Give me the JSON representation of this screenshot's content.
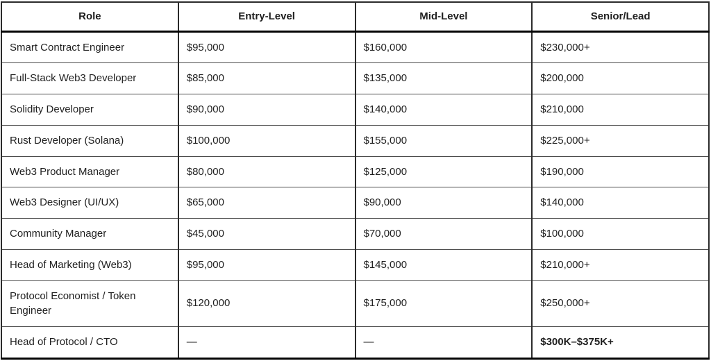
{
  "table": {
    "colors": {
      "text": "#1f1f1f",
      "outer_border": "#2b2b2b",
      "heavy_rule": "#050505",
      "row_rule": "#4a4a4a",
      "background": "#ffffff"
    },
    "columns": [
      {
        "label": "Role"
      },
      {
        "label": "Entry-Level"
      },
      {
        "label": "Mid-Level"
      },
      {
        "label": "Senior/Lead"
      }
    ],
    "rows": [
      {
        "role": "Smart Contract Engineer",
        "entry": "$95,000",
        "mid": "$160,000",
        "senior": "$230,000+"
      },
      {
        "role": "Full-Stack Web3 Developer",
        "entry": "$85,000",
        "mid": "$135,000",
        "senior": "$200,000"
      },
      {
        "role": "Solidity Developer",
        "entry": "$90,000",
        "mid": "$140,000",
        "senior": "$210,000"
      },
      {
        "role": "Rust Developer (Solana)",
        "entry": "$100,000",
        "mid": "$155,000",
        "senior": "$225,000+"
      },
      {
        "role": "Web3 Product Manager",
        "entry": "$80,000",
        "mid": "$125,000",
        "senior": "$190,000"
      },
      {
        "role": "Web3 Designer (UI/UX)",
        "entry": "$65,000",
        "mid": "$90,000",
        "senior": "$140,000"
      },
      {
        "role": "Community Manager",
        "entry": "$45,000",
        "mid": "$70,000",
        "senior": "$100,000"
      },
      {
        "role": "Head of Marketing (Web3)",
        "entry": "$95,000",
        "mid": "$145,000",
        "senior": "$210,000+"
      },
      {
        "role": "Protocol Economist / Token Engineer",
        "entry": "$120,000",
        "mid": "$175,000",
        "senior": "$250,000+"
      },
      {
        "role": "Head of Protocol / CTO",
        "entry": "—",
        "mid": "—",
        "senior": "$300K–$375K+"
      }
    ]
  }
}
